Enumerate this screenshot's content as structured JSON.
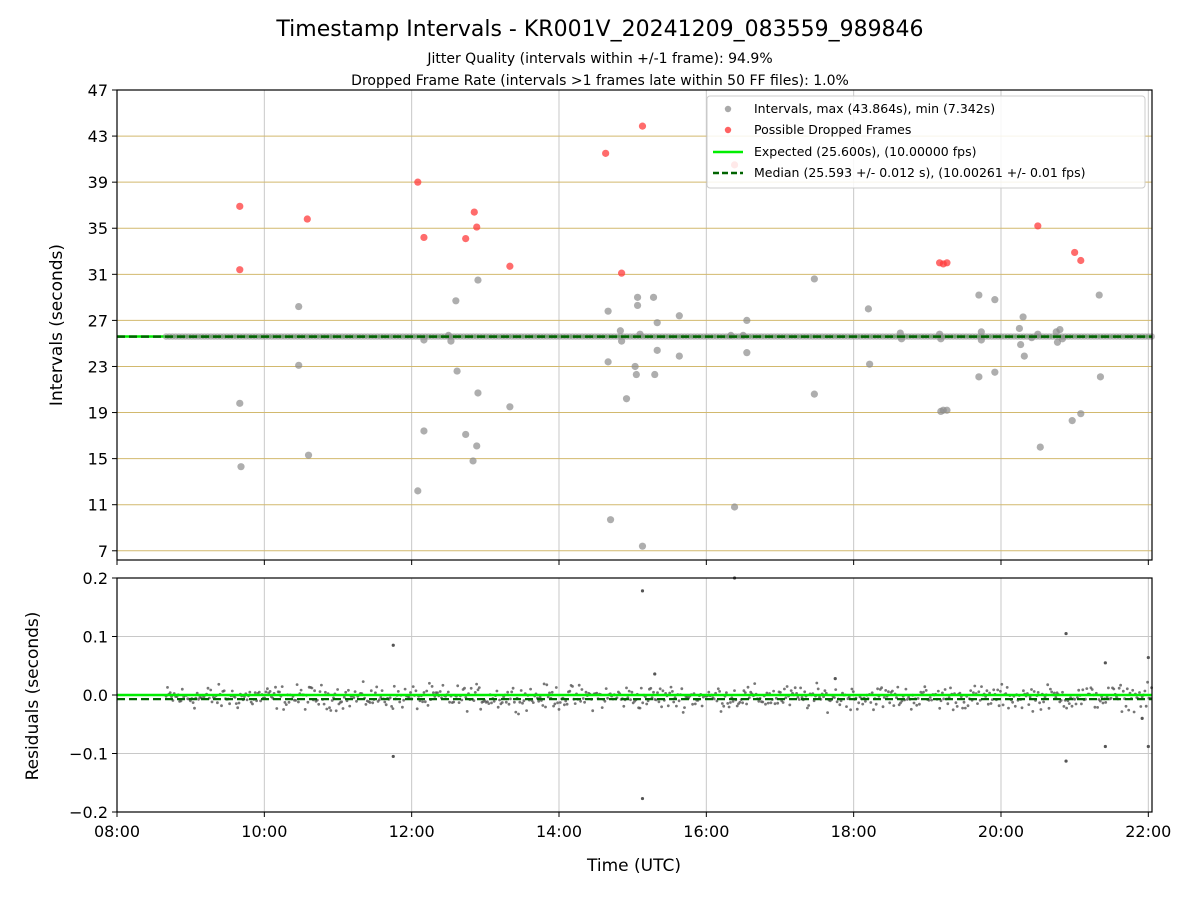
{
  "figure": {
    "title": "Timestamp Intervals - KR001V_20241209_083559_989846",
    "subtitle_1": "Jitter Quality (intervals within +/-1 frame): 94.9%",
    "subtitle_2": "Dropped Frame Rate (intervals >1 frames late within 50 FF files): 1.0%"
  },
  "colors": {
    "intervals": "#8c8c8c",
    "dropped": "#ff3b3b",
    "expected": "#00ee00",
    "median": "#006400",
    "grid_y_top": "#d2b96e",
    "grid": "#c8c8c8",
    "residuals": "#555555"
  },
  "chart_data": [
    {
      "type": "scatter",
      "name": "intervals-panel",
      "xlabel": "",
      "ylabel": "Intervals (seconds)",
      "xlim": [
        "08:00",
        "22:03"
      ],
      "ylim": [
        6.2,
        47
      ],
      "yticks": [
        7,
        11,
        15,
        19,
        23,
        27,
        31,
        35,
        39,
        43,
        47
      ],
      "grid": true,
      "legend_position": "top-right",
      "legend": [
        "Intervals, max (43.864s), min (7.342s)",
        "Possible Dropped Frames",
        "Expected (25.600s), (10.00000 fps)",
        "Median (25.593 +/- 0.012 s), (10.00261 +/- 0.01 fps)"
      ],
      "expected_value": 25.6,
      "median_value": 25.593,
      "series": [
        {
          "name": "Intervals, max (43.864s), min (7.342s)",
          "baseline": {
            "from": "08:40",
            "to": "22:03",
            "value": 25.6
          },
          "points": [
            {
              "x": "09:40",
              "y": 19.8
            },
            {
              "x": "09:41",
              "y": 14.3
            },
            {
              "x": "10:28",
              "y": 28.2
            },
            {
              "x": "10:28",
              "y": 23.1
            },
            {
              "x": "10:36",
              "y": 15.3
            },
            {
              "x": "12:05",
              "y": 12.2
            },
            {
              "x": "12:10",
              "y": 25.3
            },
            {
              "x": "12:10",
              "y": 17.4
            },
            {
              "x": "12:30",
              "y": 25.7
            },
            {
              "x": "12:32",
              "y": 25.2
            },
            {
              "x": "12:36",
              "y": 28.7
            },
            {
              "x": "12:37",
              "y": 22.6
            },
            {
              "x": "12:44",
              "y": 17.1
            },
            {
              "x": "12:50",
              "y": 14.8
            },
            {
              "x": "12:53",
              "y": 16.1
            },
            {
              "x": "12:54",
              "y": 20.7
            },
            {
              "x": "12:54",
              "y": 30.5
            },
            {
              "x": "13:20",
              "y": 19.5
            },
            {
              "x": "14:40",
              "y": 27.8
            },
            {
              "x": "14:40",
              "y": 23.4
            },
            {
              "x": "14:42",
              "y": 9.7
            },
            {
              "x": "14:50",
              "y": 26.1
            },
            {
              "x": "14:51",
              "y": 25.2
            },
            {
              "x": "14:55",
              "y": 20.2
            },
            {
              "x": "15:02",
              "y": 23.0
            },
            {
              "x": "15:03",
              "y": 22.3
            },
            {
              "x": "15:04",
              "y": 28.3
            },
            {
              "x": "15:04",
              "y": 29.0
            },
            {
              "x": "15:06",
              "y": 25.8
            },
            {
              "x": "15:08",
              "y": 7.4
            },
            {
              "x": "15:17",
              "y": 29.0
            },
            {
              "x": "15:18",
              "y": 22.3
            },
            {
              "x": "15:20",
              "y": 24.4
            },
            {
              "x": "15:20",
              "y": 26.8
            },
            {
              "x": "15:38",
              "y": 27.4
            },
            {
              "x": "15:38",
              "y": 23.9
            },
            {
              "x": "16:20",
              "y": 25.7
            },
            {
              "x": "16:23",
              "y": 10.8
            },
            {
              "x": "16:30",
              "y": 25.7
            },
            {
              "x": "16:33",
              "y": 24.2
            },
            {
              "x": "16:33",
              "y": 27.0
            },
            {
              "x": "17:28",
              "y": 30.6
            },
            {
              "x": "17:28",
              "y": 20.6
            },
            {
              "x": "18:12",
              "y": 28.0
            },
            {
              "x": "18:13",
              "y": 23.2
            },
            {
              "x": "18:38",
              "y": 25.9
            },
            {
              "x": "18:39",
              "y": 25.4
            },
            {
              "x": "19:10",
              "y": 25.8
            },
            {
              "x": "19:11",
              "y": 25.4
            },
            {
              "x": "19:11",
              "y": 19.1
            },
            {
              "x": "19:13",
              "y": 19.2
            },
            {
              "x": "19:16",
              "y": 19.2
            },
            {
              "x": "19:42",
              "y": 29.2
            },
            {
              "x": "19:42",
              "y": 22.1
            },
            {
              "x": "19:44",
              "y": 26.0
            },
            {
              "x": "19:44",
              "y": 25.3
            },
            {
              "x": "19:55",
              "y": 28.8
            },
            {
              "x": "19:55",
              "y": 22.5
            },
            {
              "x": "20:15",
              "y": 26.3
            },
            {
              "x": "20:16",
              "y": 24.9
            },
            {
              "x": "20:18",
              "y": 27.3
            },
            {
              "x": "20:19",
              "y": 23.9
            },
            {
              "x": "20:25",
              "y": 25.5
            },
            {
              "x": "20:30",
              "y": 25.8
            },
            {
              "x": "20:32",
              "y": 16.0
            },
            {
              "x": "20:45",
              "y": 26.0
            },
            {
              "x": "20:46",
              "y": 25.1
            },
            {
              "x": "20:48",
              "y": 26.2
            },
            {
              "x": "20:50",
              "y": 25.4
            },
            {
              "x": "20:58",
              "y": 18.3
            },
            {
              "x": "21:05",
              "y": 18.9
            },
            {
              "x": "21:20",
              "y": 29.2
            },
            {
              "x": "21:21",
              "y": 22.1
            }
          ]
        },
        {
          "name": "Possible Dropped Frames",
          "points": [
            {
              "x": "09:40",
              "y": 36.9
            },
            {
              "x": "09:40",
              "y": 31.4
            },
            {
              "x": "10:35",
              "y": 35.8
            },
            {
              "x": "12:05",
              "y": 39.0
            },
            {
              "x": "12:10",
              "y": 34.2
            },
            {
              "x": "12:44",
              "y": 34.1
            },
            {
              "x": "12:51",
              "y": 36.4
            },
            {
              "x": "12:53",
              "y": 35.1
            },
            {
              "x": "13:20",
              "y": 31.7
            },
            {
              "x": "14:38",
              "y": 41.5
            },
            {
              "x": "14:51",
              "y": 31.1
            },
            {
              "x": "15:08",
              "y": 43.864
            },
            {
              "x": "16:23",
              "y": 40.5
            },
            {
              "x": "19:10",
              "y": 32.0
            },
            {
              "x": "19:13",
              "y": 31.9
            },
            {
              "x": "19:16",
              "y": 32.0
            },
            {
              "x": "20:30",
              "y": 35.2
            },
            {
              "x": "21:00",
              "y": 32.9
            },
            {
              "x": "21:05",
              "y": 32.2
            }
          ]
        },
        {
          "name": "Expected (25.600s), (10.00000 fps)",
          "type": "hline",
          "value": 25.6
        },
        {
          "name": "Median (25.593 +/- 0.012 s), (10.00261 +/- 0.01 fps)",
          "type": "hline",
          "value": 25.593
        }
      ]
    },
    {
      "type": "scatter",
      "name": "residuals-panel",
      "xlabel": "Time (UTC)",
      "ylabel": "Residuals (seconds)",
      "xlim": [
        "08:00",
        "22:03"
      ],
      "ylim": [
        -0.2,
        0.2
      ],
      "yticks": [
        -0.2,
        -0.1,
        0.0,
        0.1,
        0.2
      ],
      "yticklabels": [
        "−0.2",
        "−0.1",
        "0.0",
        "0.1",
        "0.2"
      ],
      "xticks": [
        "08:00",
        "10:00",
        "12:00",
        "14:00",
        "16:00",
        "18:00",
        "20:00",
        "22:00"
      ],
      "grid": true,
      "series": [
        {
          "name": "residuals",
          "noise_band": {
            "from": "08:40",
            "to": "22:03",
            "center": -0.004,
            "spread": 0.03
          },
          "outliers": [
            {
              "x": "11:45",
              "y": 0.085
            },
            {
              "x": "11:45",
              "y": -0.105
            },
            {
              "x": "15:08",
              "y": 0.178
            },
            {
              "x": "15:08",
              "y": -0.177
            },
            {
              "x": "15:18",
              "y": 0.036
            },
            {
              "x": "16:23",
              "y": 0.2
            },
            {
              "x": "17:45",
              "y": 0.028
            },
            {
              "x": "20:53",
              "y": 0.105
            },
            {
              "x": "20:53",
              "y": -0.113
            },
            {
              "x": "21:25",
              "y": 0.055
            },
            {
              "x": "21:25",
              "y": -0.088
            },
            {
              "x": "22:00",
              "y": 0.064
            },
            {
              "x": "22:00",
              "y": -0.088
            },
            {
              "x": "21:55",
              "y": -0.04
            }
          ]
        },
        {
          "name": "expected",
          "type": "hline",
          "value": 0.0
        },
        {
          "name": "median",
          "type": "hline",
          "value": -0.007
        }
      ]
    }
  ]
}
